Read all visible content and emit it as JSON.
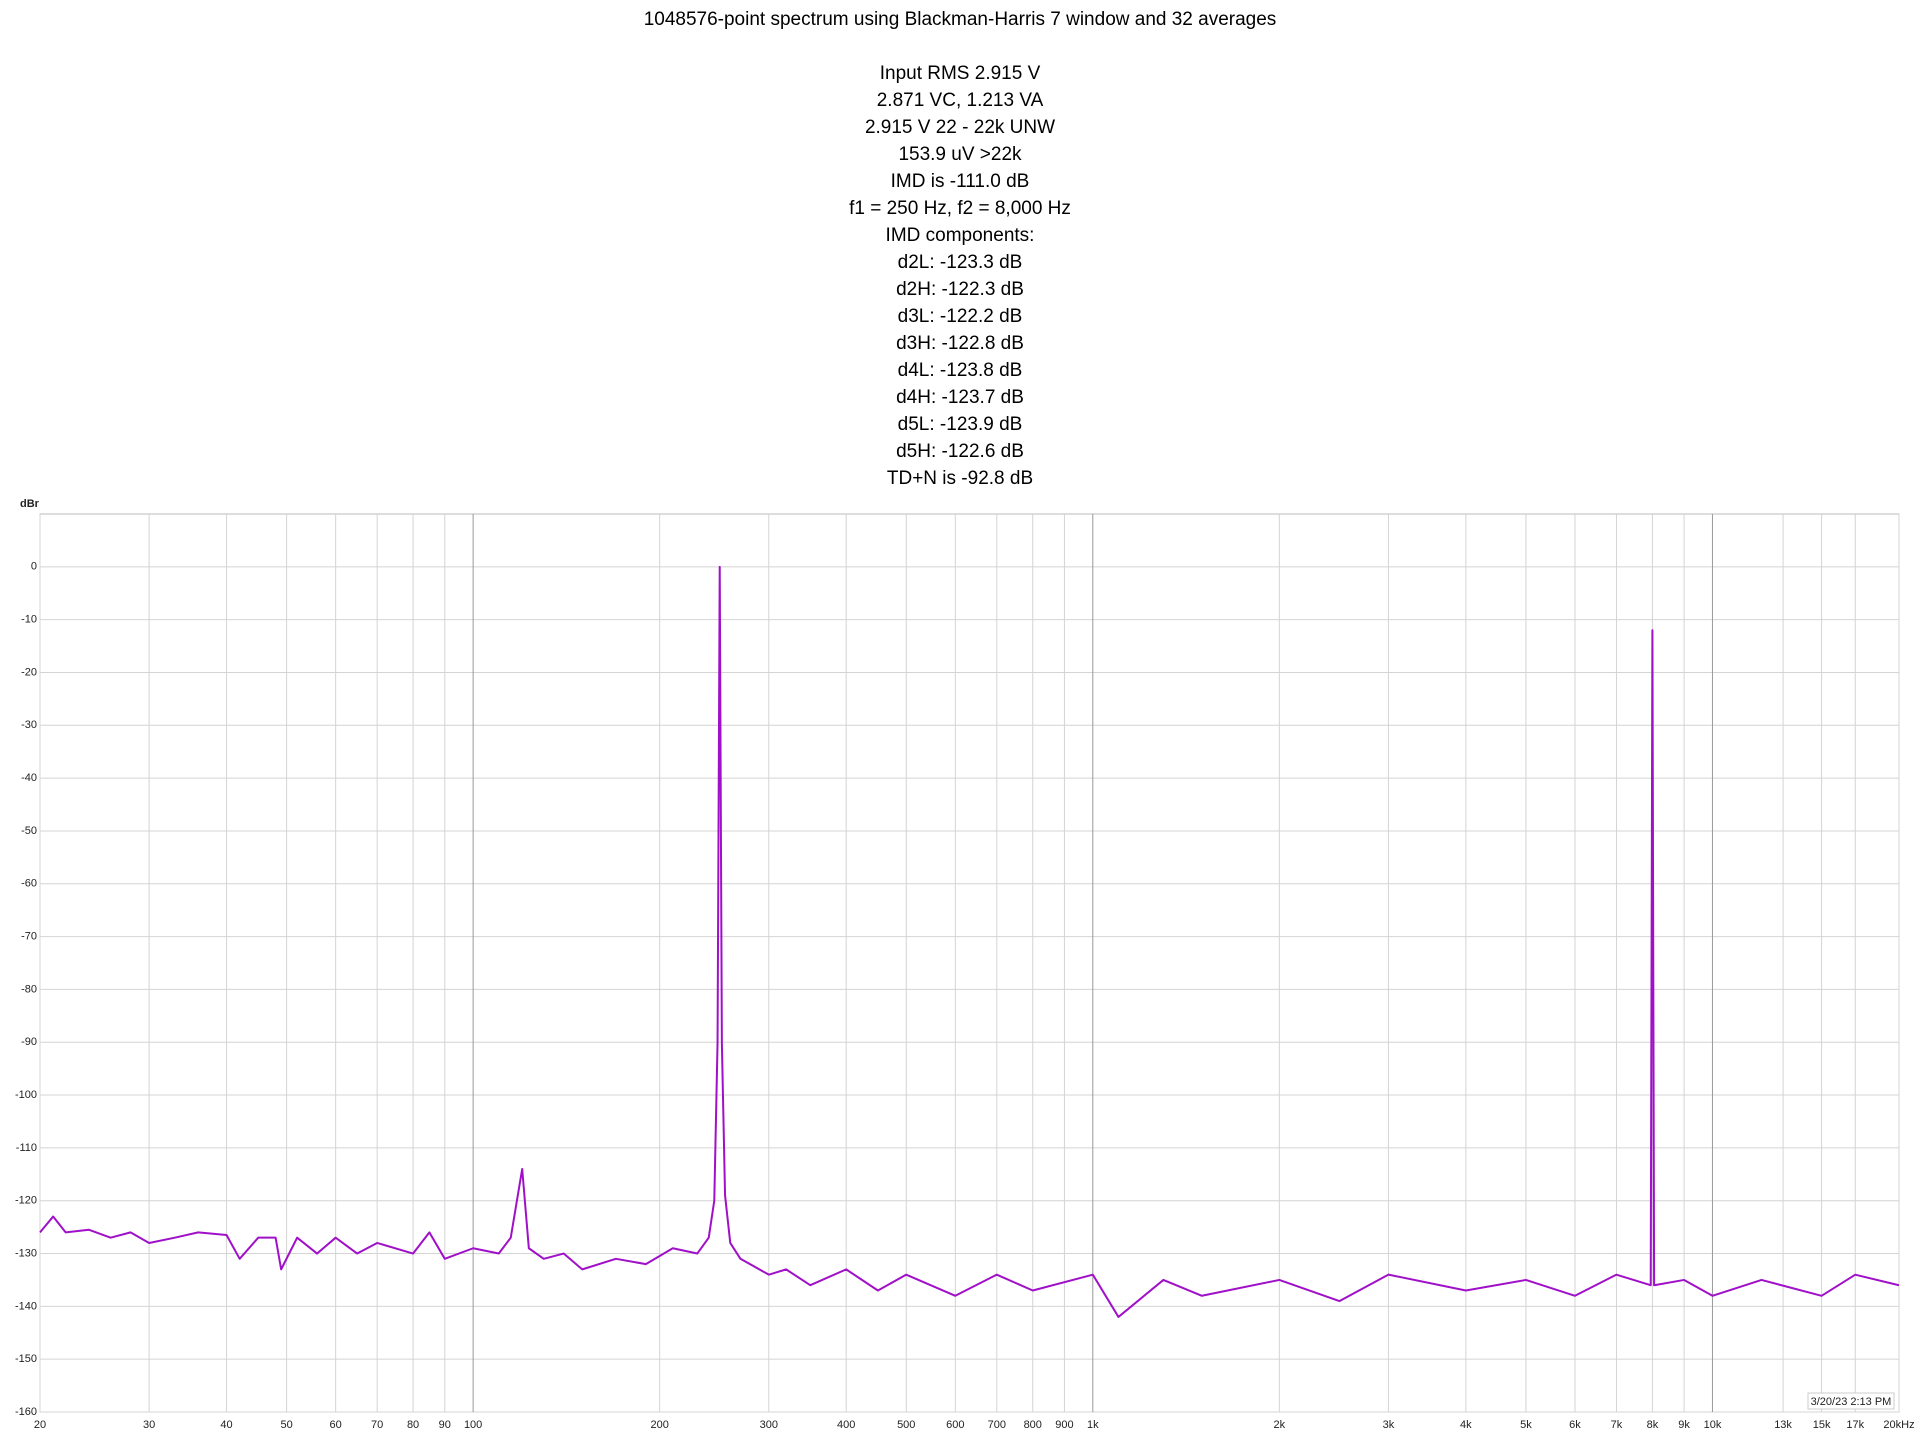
{
  "chart_data": {
    "type": "line",
    "title": "1048576-point spectrum using Blackman-Harris 7 window and 32 averages",
    "annotations": [
      "Input RMS 2.915 V",
      "2.871 VC, 1.213 VA",
      "2.915 V 22 - 22k UNW",
      "153.9 uV >22k",
      "IMD is -111.0 dB",
      "f1 = 250 Hz, f2 = 8,000 Hz",
      "IMD components:",
      "d2L: -123.3 dB",
      "d2H: -122.3 dB",
      "d3L: -122.2 dB",
      "d3H: -122.8 dB",
      "d4L: -123.8 dB",
      "d4H: -123.7 dB",
      "d5L: -123.9 dB",
      "d5H: -122.6 dB",
      "TD+N is -92.8 dB"
    ],
    "y_label": "dBr",
    "timestamp": "3/20/23 2:13 PM",
    "color": "#a010c8",
    "log_x": true,
    "grid": true,
    "xlim": [
      20,
      20000
    ],
    "ylim": [
      -160,
      10
    ],
    "xticks": [
      20,
      30,
      40,
      50,
      60,
      70,
      80,
      90,
      100,
      200,
      300,
      400,
      500,
      600,
      700,
      800,
      900,
      {
        "value": 1000,
        "label": "1k"
      },
      {
        "value": 2000,
        "label": "2k"
      },
      {
        "value": 3000,
        "label": "3k"
      },
      {
        "value": 4000,
        "label": "4k"
      },
      {
        "value": 5000,
        "label": "5k"
      },
      {
        "value": 6000,
        "label": "6k"
      },
      {
        "value": 7000,
        "label": "7k"
      },
      {
        "value": 8000,
        "label": "8k"
      },
      {
        "value": 9000,
        "label": "9k"
      },
      {
        "value": 10000,
        "label": "10k"
      },
      {
        "value": 13000,
        "label": "13k"
      },
      {
        "value": 15000,
        "label": "15k"
      },
      {
        "value": 17000,
        "label": "17k"
      },
      {
        "value": 20000,
        "label": "20kHz"
      }
    ],
    "yticks": [
      0,
      -10,
      -20,
      -30,
      -40,
      -50,
      -60,
      -70,
      -80,
      -90,
      -100,
      -110,
      -120,
      -130,
      -140,
      -150,
      -160
    ],
    "x": [
      20,
      21,
      22,
      24,
      26,
      28,
      30,
      33,
      36,
      40,
      42,
      45,
      48,
      49,
      52,
      56,
      60,
      65,
      70,
      80,
      85,
      90,
      100,
      110,
      115,
      120,
      123,
      130,
      140,
      150,
      170,
      190,
      210,
      230,
      240,
      245,
      248,
      250,
      252,
      255,
      260,
      270,
      300,
      320,
      350,
      400,
      450,
      500,
      600,
      700,
      800,
      1000,
      1100,
      1300,
      1500,
      2000,
      2500,
      3000,
      4000,
      5000,
      6000,
      7000,
      7950,
      8000,
      8050,
      9000,
      10000,
      12000,
      15000,
      17000,
      20000
    ],
    "values": [
      -126,
      -123,
      -126,
      -125.5,
      -127,
      -126,
      -128,
      -127,
      -126,
      -126.5,
      -131,
      -127,
      -127,
      -133,
      -127,
      -130,
      -127,
      -130,
      -128,
      -130,
      -126,
      -131,
      -129,
      -130,
      -127,
      -114,
      -129,
      -131,
      -130,
      -133,
      -131,
      -132,
      -129,
      -130,
      -127,
      -120,
      -90,
      0,
      -90,
      -119,
      -128,
      -131,
      -134,
      -133,
      -136,
      -133,
      -137,
      -134,
      -138,
      -134,
      -137,
      -134,
      -142,
      -135,
      -138,
      -135,
      -139,
      -134,
      -137,
      -135,
      -138,
      -134,
      -136,
      -12,
      -136,
      -135,
      -138,
      -135,
      -138,
      -134,
      -136
    ]
  }
}
